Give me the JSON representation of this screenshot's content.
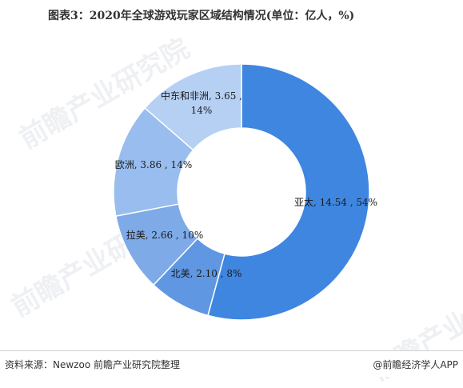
{
  "title": "图表3：2020年全球游戏玩家区域结构情况(单位：亿人，%)",
  "chart_data": {
    "type": "pie",
    "donut": true,
    "title": "图表3：2020年全球游戏玩家区域结构情况(单位：亿人，%)",
    "unit": "亿人",
    "slices": [
      {
        "label": "亚太",
        "value": 14.54,
        "percent": "54%",
        "color": "#3e86e0"
      },
      {
        "label": "北美",
        "value": 2.1,
        "percent": "8%",
        "color": "#5f97e2"
      },
      {
        "label": "拉美",
        "value": 2.66,
        "percent": "10%",
        "color": "#7eaae8"
      },
      {
        "label": "欧洲",
        "value": 3.86,
        "percent": "14%",
        "color": "#98bdee"
      },
      {
        "label": "中东和非洲",
        "value": 3.65,
        "percent": "14%",
        "color": "#b5d0f3"
      }
    ],
    "data_labels": [
      [
        "亚太, 14.54 , 54%"
      ],
      [
        "北美, 2.10 , 8%"
      ],
      [
        "拉美, 2.66 , 10%"
      ],
      [
        "欧洲, 3.86 , 14%"
      ],
      [
        "中东和非洲, 3.65 ,",
        "14%"
      ]
    ]
  },
  "footer": {
    "source": "资料来源：Newzoo 前瞻产业研究院整理",
    "credit": "@前瞻经济学人APP"
  },
  "watermark": "前瞻产业研究院"
}
